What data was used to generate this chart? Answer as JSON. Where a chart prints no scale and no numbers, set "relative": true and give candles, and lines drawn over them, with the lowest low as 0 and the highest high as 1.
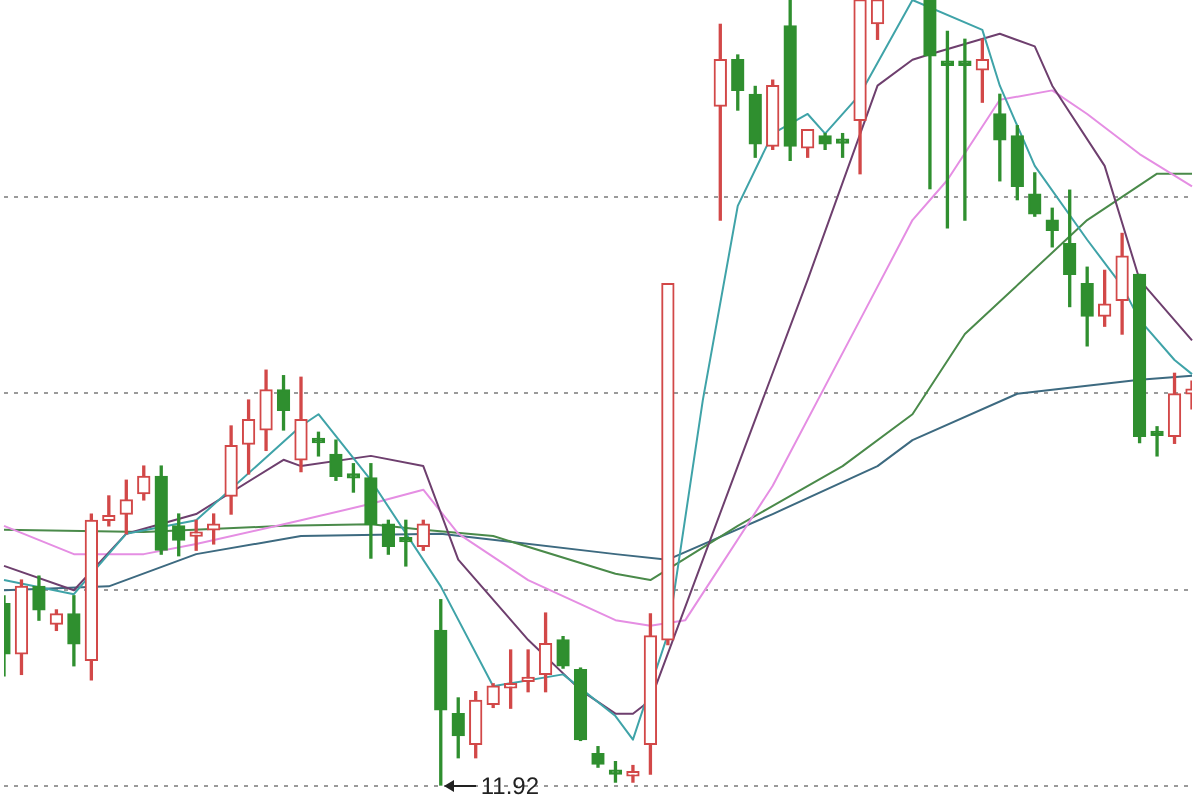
{
  "chart_data": {
    "type": "candlestick",
    "relative": true,
    "grid": true,
    "tick_labels": false,
    "categories": [
      null,
      null,
      null,
      null,
      null,
      null,
      null,
      null,
      null,
      null,
      null,
      null,
      null,
      null,
      null,
      null,
      null,
      null,
      null,
      null,
      null,
      null,
      null,
      null,
      null,
      null,
      null,
      null,
      null,
      null,
      null,
      null,
      null,
      null,
      null,
      null,
      null,
      null,
      null,
      null,
      null,
      null,
      null,
      null,
      null,
      null,
      null,
      null,
      null,
      null,
      null,
      null,
      null,
      null,
      null,
      null,
      null,
      null,
      null,
      null,
      null,
      null,
      null,
      null,
      null,
      null,
      null,
      null,
      null
    ],
    "ohlc": [
      [
        0.232,
        0.242,
        0.14,
        0.168
      ],
      [
        0.168,
        0.262,
        0.142,
        0.254
      ],
      [
        0.254,
        0.267,
        0.211,
        0.224
      ],
      [
        0.206,
        0.224,
        0.198,
        0.219
      ],
      [
        0.219,
        0.242,
        0.153,
        0.181
      ],
      [
        0.16,
        0.346,
        0.135,
        0.338
      ],
      [
        0.338,
        0.369,
        0.331,
        0.344
      ],
      [
        0.346,
        0.389,
        0.321,
        0.364
      ],
      [
        0.372,
        0.407,
        0.364,
        0.394
      ],
      [
        0.394,
        0.407,
        0.295,
        0.3
      ],
      [
        0.331,
        0.346,
        0.293,
        0.313
      ],
      [
        0.318,
        0.338,
        0.3,
        0.323
      ],
      [
        0.326,
        0.346,
        0.308,
        0.333
      ],
      [
        0.369,
        0.458,
        0.346,
        0.433
      ],
      [
        0.435,
        0.491,
        0.397,
        0.466
      ],
      [
        0.453,
        0.529,
        0.427,
        0.504
      ],
      [
        0.504,
        0.522,
        0.453,
        0.478
      ],
      [
        0.415,
        0.52,
        0.4,
        0.466
      ],
      [
        0.44,
        0.45,
        0.42,
        0.437
      ],
      [
        0.422,
        0.44,
        0.389,
        0.394
      ],
      [
        0.395,
        0.41,
        0.374,
        0.392
      ],
      [
        0.392,
        0.41,
        0.29,
        0.333
      ],
      [
        0.333,
        0.338,
        0.295,
        0.305
      ],
      [
        0.316,
        0.338,
        0.28,
        0.311
      ],
      [
        0.305,
        0.338,
        0.3,
        0.333
      ],
      [
        0.198,
        0.237,
        0,
        0.097
      ],
      [
        0.092,
        0.112,
        0.036,
        0.064
      ],
      [
        0.053,
        0.12,
        0.036,
        0.109
      ],
      [
        0.104,
        0.13,
        0.1,
        0.127
      ],
      [
        0.125,
        0.173,
        0.099,
        0.13
      ],
      [
        0.133,
        0.173,
        0.12,
        0.135
      ],
      [
        0.142,
        0.22,
        0.12,
        0.181
      ],
      [
        0.186,
        0.19,
        0.15,
        0.153
      ],
      [
        0.148,
        0.15,
        0.058,
        0.059
      ],
      [
        0.041,
        0.05,
        0.024,
        0.028
      ],
      [
        0.018,
        0.031,
        0.005,
        0.015
      ],
      [
        0.013,
        0.026,
        0.005,
        0.015
      ],
      [
        0.053,
        0.219,
        0.015,
        0.191
      ],
      [
        0.186,
        0.639,
        0.18,
        0.639
      ],
      null,
      null,
      [
        0.865,
        0.969,
        0.72,
        0.924
      ],
      [
        0.924,
        0.93,
        0.86,
        0.885
      ],
      [
        0.88,
        0.89,
        0.8,
        0.817
      ],
      [
        0.814,
        0.898,
        0.81,
        0.891
      ],
      [
        0.967,
        1,
        0.796,
        0.814
      ],
      [
        0.812,
        0.835,
        0.8,
        0.835
      ],
      [
        0.827,
        0.83,
        0.81,
        0.817
      ],
      [
        0.82,
        0.83,
        0.8,
        0.818
      ],
      [
        0.847,
        1,
        0.779,
        1
      ],
      [
        0.97,
        1,
        0.95,
        1
      ],
      null,
      null,
      [
        1,
        1,
        0.76,
        0.929
      ],
      [
        0.919,
        0.96,
        0.71,
        0.917
      ],
      [
        0.919,
        0.95,
        0.72,
        0.917
      ],
      [
        0.911,
        0.95,
        0.87,
        0.924
      ],
      [
        0.855,
        0.88,
        0.77,
        0.822
      ],
      [
        0.827,
        0.84,
        0.746,
        0.763
      ],
      [
        0.753,
        0.78,
        0.725,
        0.728
      ],
      [
        0.72,
        0.735,
        0.686,
        0.707
      ],
      [
        0.69,
        0.758,
        0.61,
        0.651
      ],
      [
        0.639,
        0.66,
        0.56,
        0.598
      ],
      [
        0.598,
        0.656,
        0.585,
        0.613
      ],
      [
        0.618,
        0.703,
        0.575,
        0.674
      ],
      [
        0.651,
        0.651,
        0.437,
        0.445
      ],
      [
        0.448,
        0.457,
        0.42,
        0.446
      ],
      [
        0.445,
        0.525,
        0.436,
        0.499
      ],
      [
        0.499,
        0.515,
        0.48,
        0.505
      ]
    ],
    "colors": [
      "#2f8f2f",
      "#d24848",
      "#2f8f2f",
      "#d24848",
      "#2f8f2f",
      "#d24848",
      "#d24848",
      "#d24848",
      "#d24848",
      "#2f8f2f",
      "#2f8f2f",
      "#d24848",
      "#d24848",
      "#d24848",
      "#d24848",
      "#d24848",
      "#2f8f2f",
      "#d24848",
      "#2f8f2f",
      "#2f8f2f",
      "#2f8f2f",
      "#2f8f2f",
      "#2f8f2f",
      "#2f8f2f",
      "#d24848",
      "#2f8f2f",
      "#2f8f2f",
      "#d24848",
      "#d24848",
      "#d24848",
      "#d24848",
      "#d24848",
      "#2f8f2f",
      "#2f8f2f",
      "#2f8f2f",
      "#2f8f2f",
      "#d24848",
      "#d24848",
      "#d24848",
      null,
      null,
      "#d24848",
      "#2f8f2f",
      "#2f8f2f",
      "#d24848",
      "#2f8f2f",
      "#d24848",
      "#2f8f2f",
      "#2f8f2f",
      "#d24848",
      "#d24848",
      null,
      null,
      "#2f8f2f",
      "#2f8f2f",
      "#2f8f2f",
      "#d24848",
      "#2f8f2f",
      "#2f8f2f",
      "#2f8f2f",
      "#2f8f2f",
      "#2f8f2f",
      "#2f8f2f",
      "#d24848",
      "#d24848",
      "#2f8f2f",
      "#2f8f2f",
      "#d24848",
      "#d24848"
    ],
    "series": [
      {
        "type": "line",
        "color": "#3fa3a8",
        "values": [
          0.262,
          null,
          null,
          null,
          0.244,
          null,
          null,
          0.321,
          null,
          null,
          null,
          0.338,
          null,
          null,
          null,
          null,
          null,
          0.458,
          0.473,
          null,
          null,
          0.389,
          null,
          null,
          null,
          0.254,
          null,
          null,
          0.127,
          null,
          null,
          null,
          0.142,
          null,
          null,
          0.089,
          0.059,
          null,
          0.193,
          null,
          0.491,
          null,
          0.738,
          null,
          0.83,
          null,
          0.855,
          0.83,
          null,
          0.88,
          null,
          null,
          1,
          null,
          null,
          null,
          0.962,
          0.891,
          null,
          0.789,
          null,
          null,
          0.695,
          null,
          0.636,
          0.593,
          null,
          0.542,
          0.524
        ]
      },
      {
        "type": "line",
        "color": "#6e3f6e",
        "values": [
          0.28,
          null,
          null,
          null,
          0.249,
          null,
          null,
          0.321,
          null,
          null,
          null,
          0.346,
          null,
          null,
          null,
          null,
          0.415,
          0.407,
          null,
          null,
          null,
          0.42,
          null,
          null,
          0.407,
          null,
          0.288,
          null,
          null,
          null,
          0.186,
          null,
          null,
          0.122,
          null,
          0.092,
          0.092,
          0.109,
          null,
          null,
          null,
          null,
          0.407,
          null,
          null,
          null,
          0.644,
          null,
          null,
          null,
          0.891,
          null,
          0.924,
          0.931,
          null,
          null,
          null,
          0.957,
          null,
          0.941,
          0.891,
          null,
          null,
          0.789,
          null,
          0.644,
          null,
          null,
          0.567
        ]
      },
      {
        "type": "line",
        "color": "#e58ee3",
        "values": [
          0.331,
          null,
          null,
          null,
          0.295,
          null,
          null,
          null,
          0.295,
          null,
          null,
          0.308,
          null,
          null,
          null,
          null,
          null,
          0.338,
          null,
          null,
          null,
          0.359,
          null,
          null,
          0.377,
          null,
          0.321,
          null,
          null,
          null,
          0.262,
          null,
          null,
          null,
          null,
          0.211,
          null,
          0.204,
          null,
          0.211,
          null,
          null,
          null,
          null,
          0.382,
          null,
          null,
          null,
          null,
          0.593,
          null,
          null,
          0.72,
          null,
          0.771,
          null,
          null,
          0.873,
          null,
          null,
          0.885,
          null,
          0.855,
          null,
          null,
          0.804,
          null,
          null,
          0.763
        ]
      },
      {
        "type": "line",
        "color": "#4a8a4a",
        "values": [
          0.326,
          null,
          null,
          null,
          null,
          null,
          null,
          null,
          0.323,
          null,
          null,
          null,
          null,
          null,
          null,
          null,
          0.331,
          null,
          null,
          null,
          null,
          0.333,
          null,
          null,
          0.326,
          null,
          null,
          null,
          0.318,
          null,
          null,
          null,
          null,
          null,
          null,
          0.27,
          null,
          0.262,
          null,
          null,
          null,
          null,
          0.331,
          null,
          null,
          null,
          null,
          null,
          0.407,
          null,
          null,
          null,
          0.473,
          null,
          null,
          0.575,
          null,
          null,
          null,
          null,
          null,
          null,
          0.72,
          null,
          null,
          null,
          0.779,
          null,
          0.779
        ]
      },
      {
        "type": "line",
        "color": "#3d6a80",
        "values": [
          0.249,
          null,
          null,
          null,
          null,
          null,
          0.254,
          null,
          null,
          null,
          null,
          0.295,
          null,
          null,
          null,
          null,
          null,
          0.318,
          null,
          null,
          null,
          null,
          null,
          null,
          null,
          0.321,
          null,
          null,
          null,
          null,
          null,
          null,
          null,
          null,
          null,
          0.295,
          null,
          null,
          0.288,
          null,
          null,
          null,
          null,
          null,
          0.346,
          null,
          null,
          null,
          null,
          null,
          0.407,
          null,
          0.44,
          null,
          null,
          null,
          null,
          null,
          0.499,
          null,
          null,
          null,
          null,
          null,
          null,
          0.517,
          null,
          null,
          0.522
        ]
      }
    ],
    "annotations": [
      "11.92"
    ]
  }
}
